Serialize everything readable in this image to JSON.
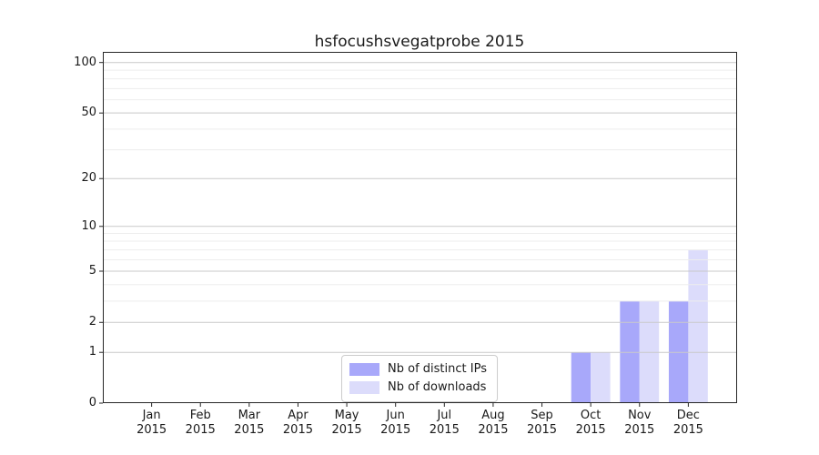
{
  "chart_data": {
    "type": "bar",
    "title": "hsfocushsvegatprobe 2015",
    "x_labels": [
      {
        "month": "Jan",
        "year": "2015"
      },
      {
        "month": "Feb",
        "year": "2015"
      },
      {
        "month": "Mar",
        "year": "2015"
      },
      {
        "month": "Apr",
        "year": "2015"
      },
      {
        "month": "May",
        "year": "2015"
      },
      {
        "month": "Jun",
        "year": "2015"
      },
      {
        "month": "Jul",
        "year": "2015"
      },
      {
        "month": "Aug",
        "year": "2015"
      },
      {
        "month": "Sep",
        "year": "2015"
      },
      {
        "month": "Oct",
        "year": "2015"
      },
      {
        "month": "Nov",
        "year": "2015"
      },
      {
        "month": "Dec",
        "year": "2015"
      }
    ],
    "series": [
      {
        "name": "Nb of distinct IPs",
        "color": "#a8a8fa",
        "values": [
          0,
          0,
          0,
          0,
          0,
          0,
          0,
          0,
          0,
          1,
          3,
          3
        ]
      },
      {
        "name": "Nb of downloads",
        "color": "#dcdcfb",
        "values": [
          0,
          0,
          0,
          0,
          0,
          0,
          0,
          0,
          0,
          1,
          3,
          7
        ]
      }
    ],
    "y_scale": "log10(1+v)",
    "y_ticks": [
      0,
      1,
      2,
      5,
      10,
      20,
      50,
      100
    ],
    "y_minor_gridlines": [
      3,
      4,
      6,
      7,
      8,
      9,
      30,
      40,
      60,
      70,
      80,
      90
    ],
    "ylim": [
      0,
      115
    ],
    "grid": "horizontal, drawn over bars",
    "legend_position": "lower center",
    "colors": {
      "major_grid": "#c9c9c9",
      "minor_grid": "#ededed",
      "spine": "#262626",
      "text": "#1a1a1a"
    }
  }
}
